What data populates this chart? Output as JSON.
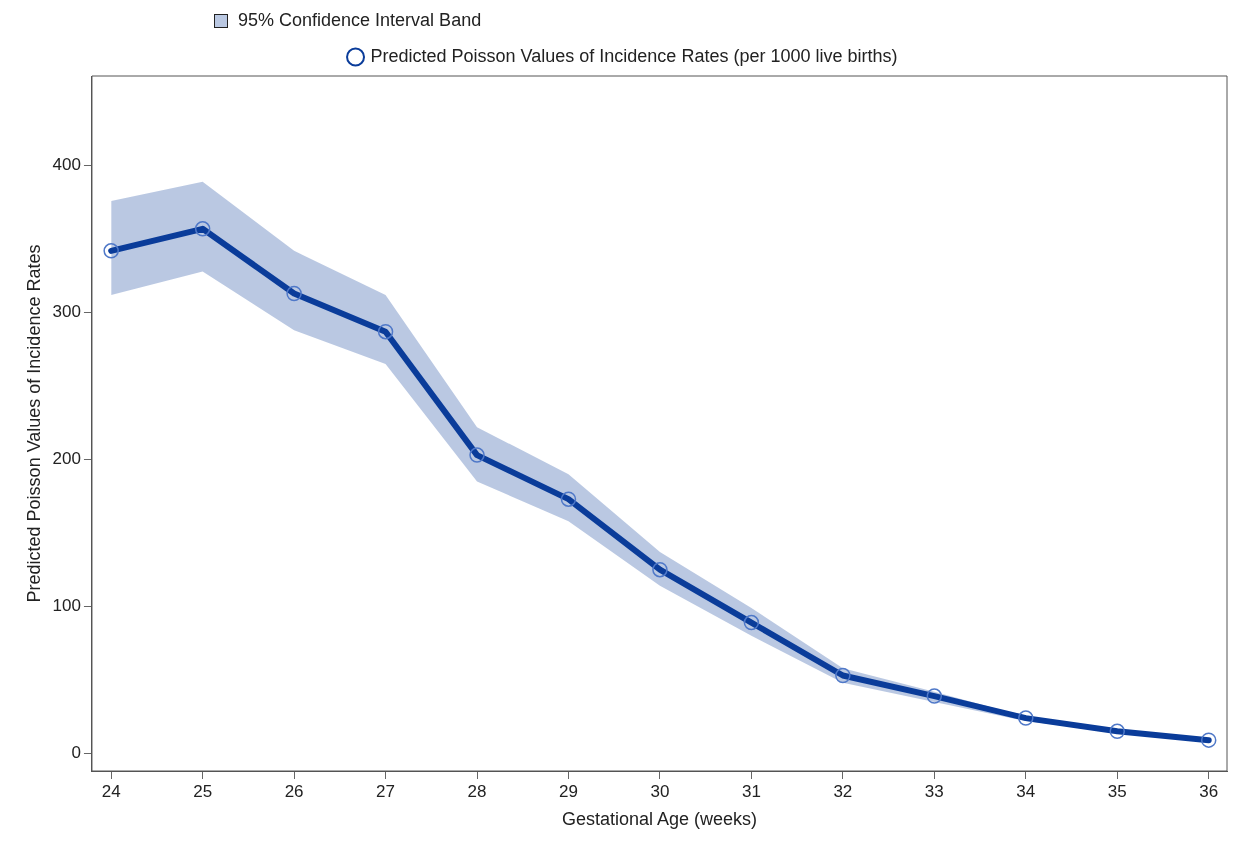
{
  "chart_data": {
    "type": "line",
    "xlabel": "Gestational Age (weeks)",
    "ylabel": "Predicted Poisson Values of Incidence Rates",
    "annotations": [
      "95% Confidence Interval Band"
    ],
    "x": [
      24,
      25,
      26,
      27,
      28,
      29,
      30,
      31,
      32,
      33,
      34,
      35,
      36
    ],
    "series": [
      {
        "name": "Predicted Poisson Values of Incidence Rates (per 1000 live births)",
        "color": "#0a3c9a",
        "values": [
          342,
          357,
          313,
          287,
          203,
          173,
          125,
          89,
          53,
          39,
          24,
          15,
          9
        ],
        "lower": [
          312,
          328,
          288,
          265,
          185,
          158,
          114,
          80,
          48,
          35,
          22,
          14,
          8
        ],
        "upper": [
          376,
          389,
          342,
          312,
          222,
          190,
          137,
          99,
          58,
          42,
          25,
          16,
          10
        ]
      }
    ],
    "xlim": [
      23.79,
      36.2
    ],
    "xticks": [
      24,
      25,
      26,
      27,
      28,
      29,
      30,
      31,
      32,
      33,
      34,
      35,
      36
    ],
    "ylim": [
      -12,
      461
    ],
    "yticks": [
      0,
      100,
      200,
      300,
      400
    ],
    "grid": false,
    "legend": "top",
    "marker": "circle",
    "line_style": "solid"
  }
}
